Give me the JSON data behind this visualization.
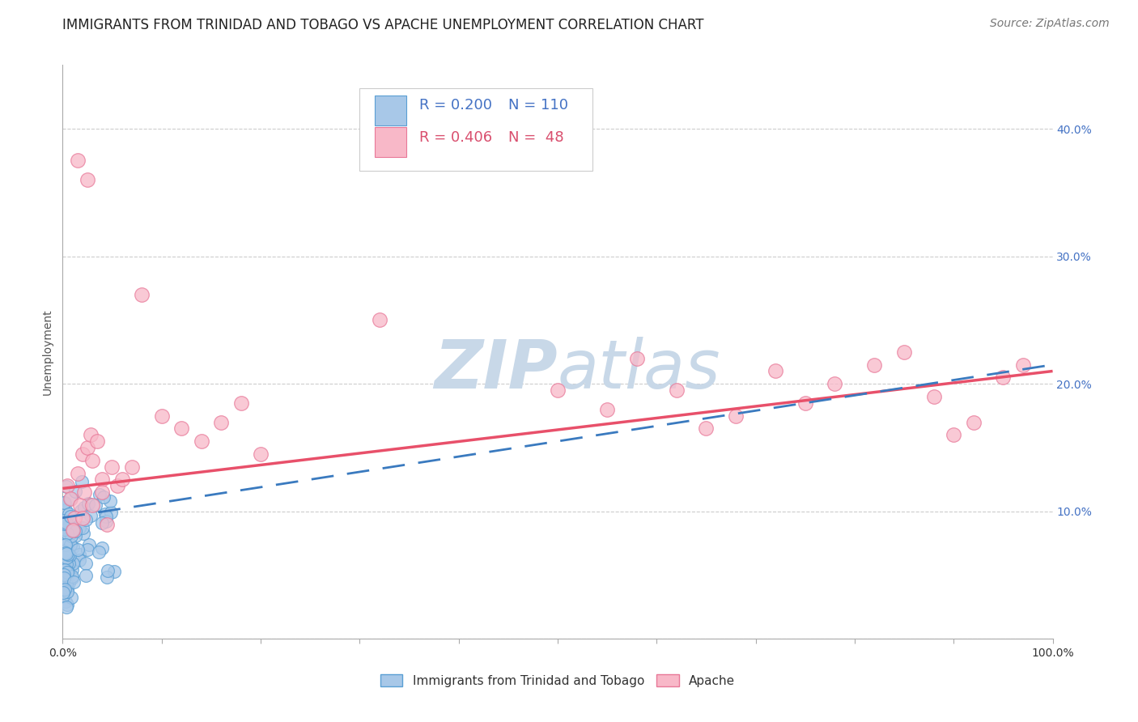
{
  "title": "IMMIGRANTS FROM TRINIDAD AND TOBAGO VS APACHE UNEMPLOYMENT CORRELATION CHART",
  "source": "Source: ZipAtlas.com",
  "ylabel": "Unemployment",
  "xlim": [
    0,
    1.0
  ],
  "ylim": [
    0,
    0.45
  ],
  "xticks": [
    0.0,
    0.1,
    0.2,
    0.3,
    0.4,
    0.5,
    0.6,
    0.7,
    0.8,
    0.9,
    1.0
  ],
  "xticklabels": [
    "0.0%",
    "",
    "",
    "",
    "",
    "",
    "",
    "",
    "",
    "",
    "100.0%"
  ],
  "yticks": [
    0.0,
    0.1,
    0.2,
    0.3,
    0.4
  ],
  "yticklabels": [
    "",
    "10.0%",
    "20.0%",
    "30.0%",
    "40.0%"
  ],
  "series1_color": "#a8c8e8",
  "series1_edge": "#5a9fd4",
  "series2_color": "#f8b8c8",
  "series2_edge": "#e87898",
  "trend1_color": "#3a7abf",
  "trend2_color": "#e8506a",
  "grid_color": "#cccccc",
  "watermark_color": "#c8d8e8",
  "series1_label": "Immigrants from Trinidad and Tobago",
  "series2_label": "Apache",
  "legend_text_color1": "#4472c4",
  "legend_text_color2": "#d94f6e",
  "tick_color": "#4472c4",
  "background_color": "#ffffff",
  "title_fontsize": 12,
  "source_fontsize": 10,
  "axis_label_fontsize": 10,
  "tick_fontsize": 10,
  "legend_fontsize": 13,
  "watermark_fontsize": 60,
  "pink_trend_x0": 0.0,
  "pink_trend_y0": 0.118,
  "pink_trend_x1": 1.0,
  "pink_trend_y1": 0.21,
  "blue_trend_x0": 0.0,
  "blue_trend_y0": 0.095,
  "blue_trend_x1": 1.0,
  "blue_trend_y1": 0.215
}
